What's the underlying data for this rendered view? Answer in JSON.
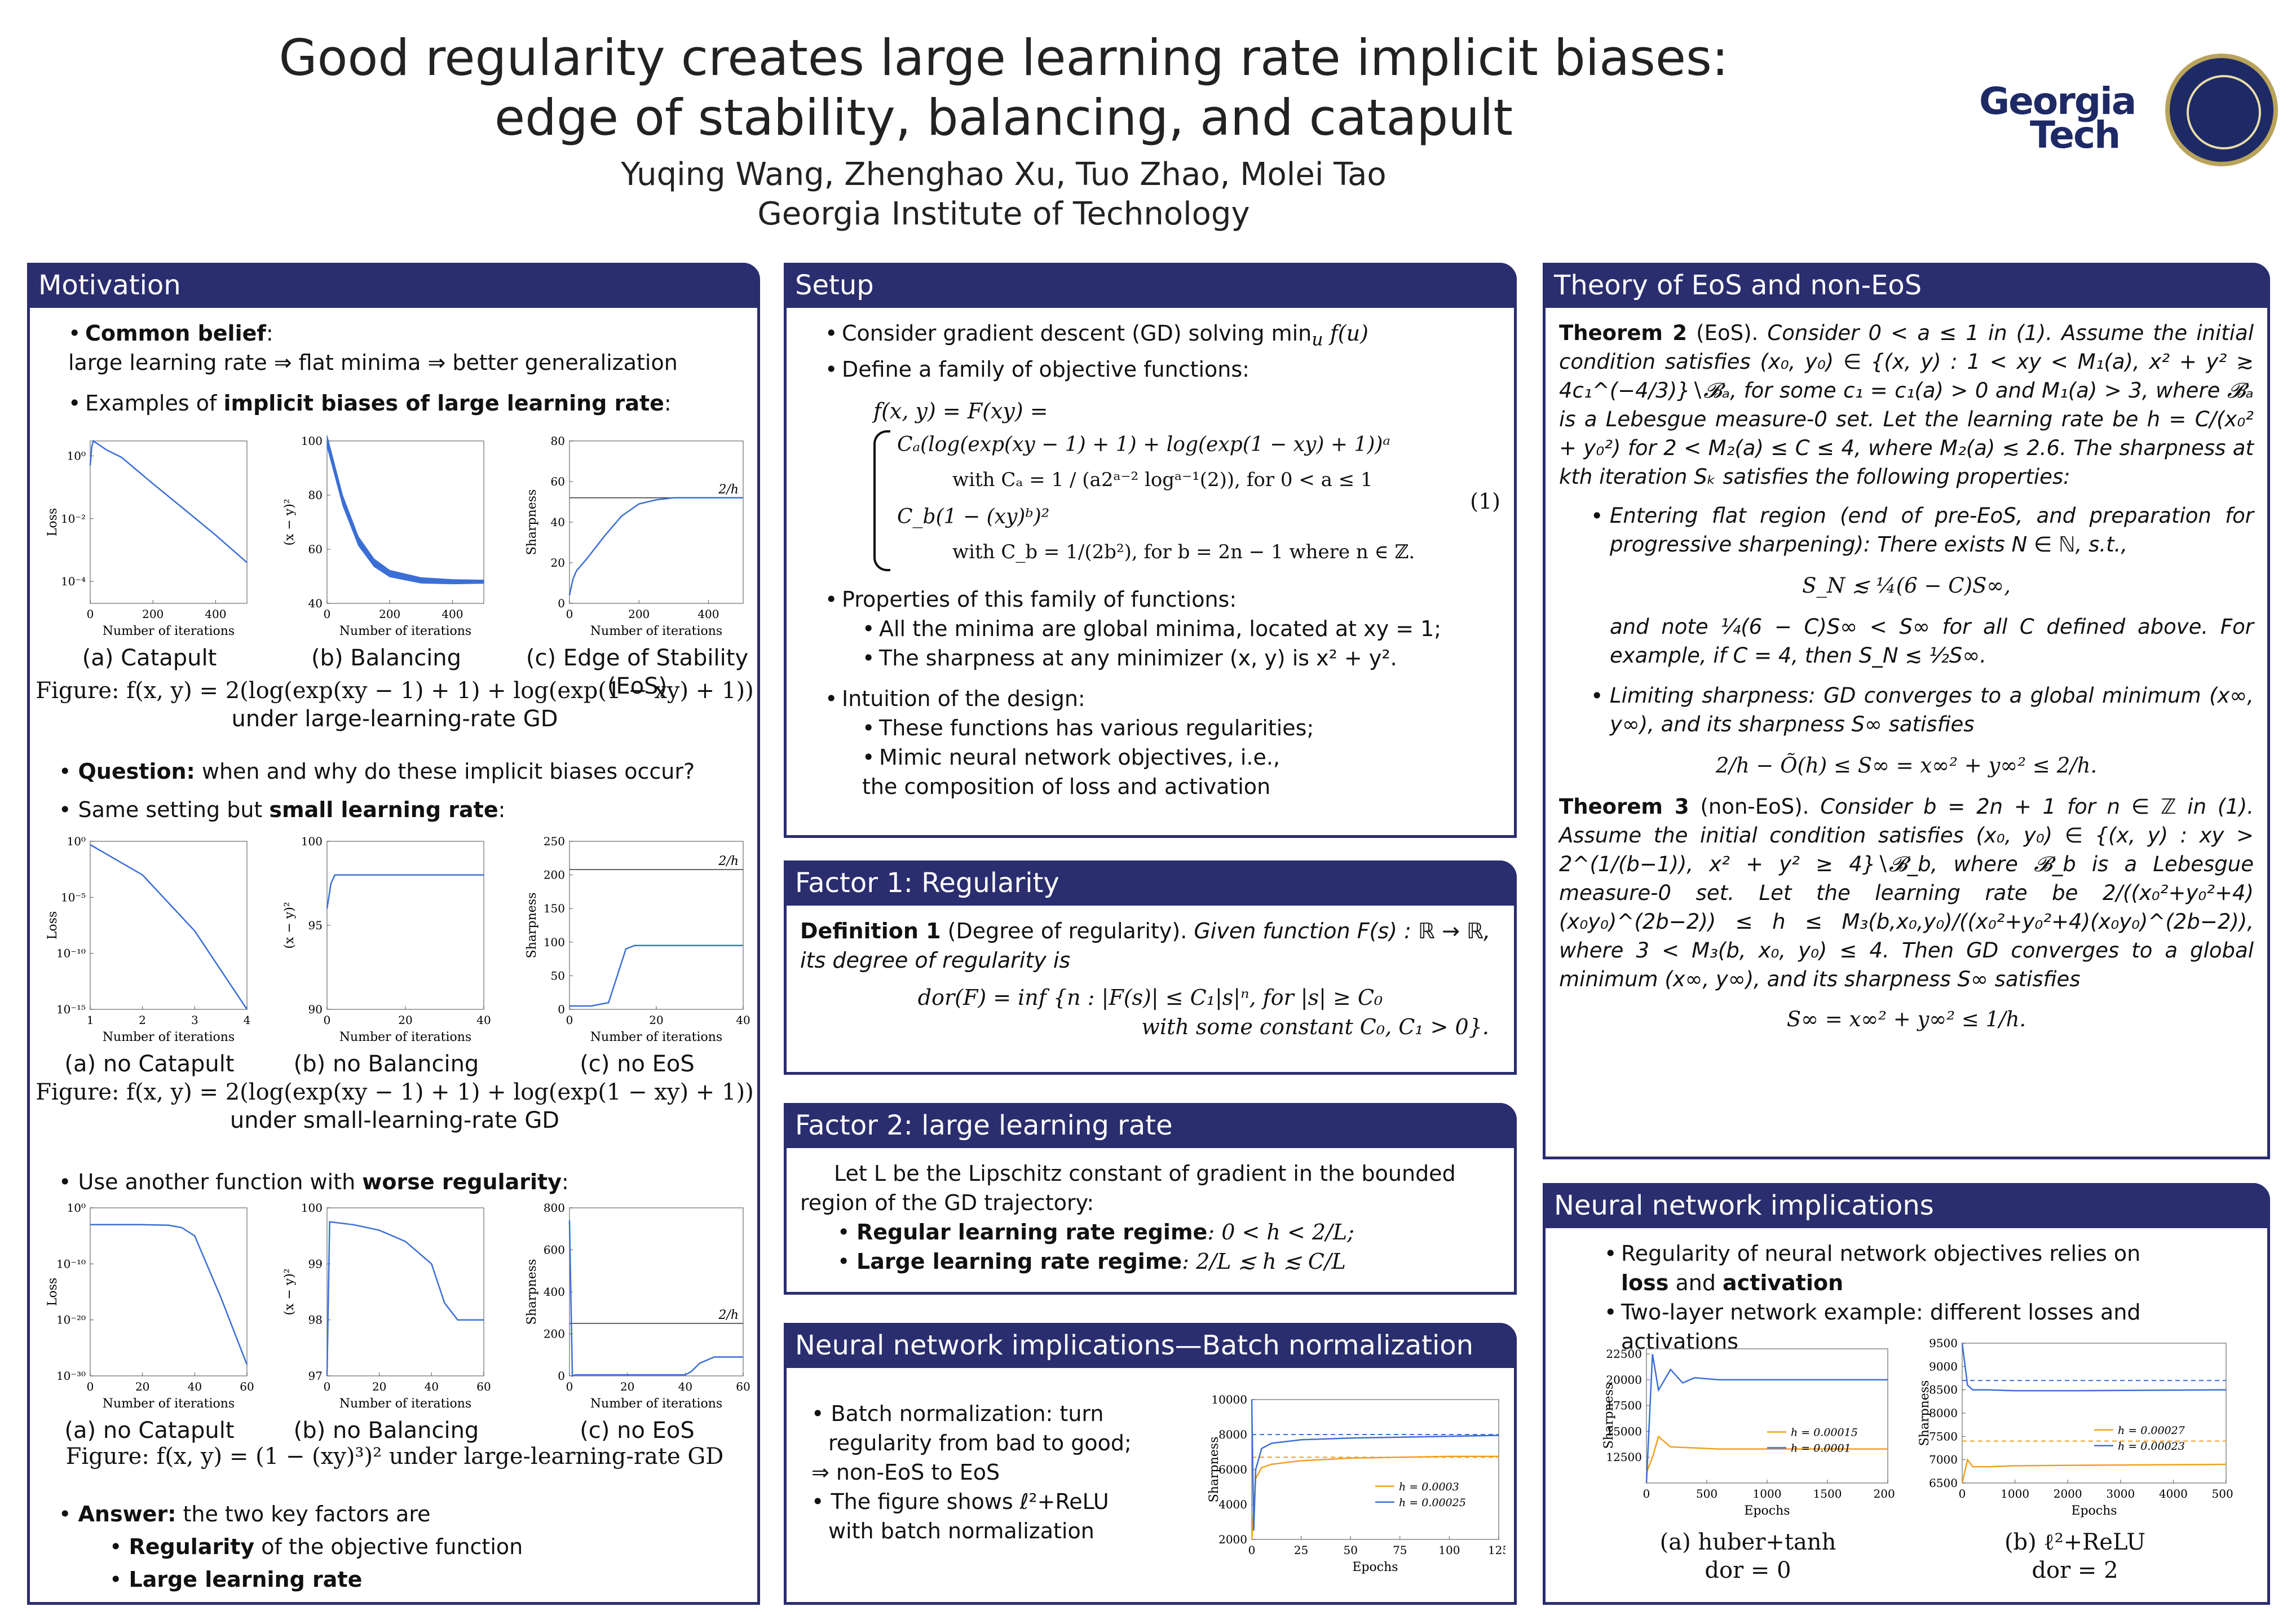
{
  "header": {
    "title_line1": "Good regularity creates large learning rate implicit biases:",
    "title_line2": "edge of stability, balancing, and catapult",
    "authors": "Yuqing Wang, Zhenghao Xu, Tuo Zhao, Molei Tao",
    "affiliation": "Georgia Institute of Technology",
    "logo_word1": "Georgia",
    "logo_word2": "Tech"
  },
  "colors": {
    "accent": "#2a2d6e",
    "series_blue": "#3b6fd6",
    "series_orange": "#f0a020",
    "series_band": "#3b6fd6"
  },
  "motivation": {
    "title": "Motivation",
    "b1_head": "Common belief",
    "b1_colon": ":",
    "b1_text": "large learning rate ⇒ flat minima ⇒ better generalization",
    "b2_pre": "Examples of ",
    "b2_bold": "implicit biases of large learning rate",
    "b2_post": ":",
    "fig1_caption": "Figure:  f(x, y) = 2(log(exp(xy − 1) + 1) + log(exp(1 − xy) + 1))",
    "fig1_caption2": "under large-learning-rate GD",
    "q_head": "Question:",
    "q_text": " when and why do these implicit biases occur?",
    "small_pre": "Same setting but ",
    "small_bold": "small learning rate",
    "small_post": ":",
    "fig2_caption": "Figure:  f(x, y) = 2(log(exp(xy − 1) + 1) + log(exp(1 − xy) + 1))",
    "fig2_caption2": "under small-learning-rate GD",
    "worse_pre": "Use another function with ",
    "worse_bold": "worse regularity",
    "worse_post": ":",
    "fig3_caption": "Figure:  f(x, y) = (1 − (xy)³)² under large-learning-rate GD",
    "ans_head": "Answer:",
    "ans_text": " the two key factors are",
    "ans1_bold": "Regularity",
    "ans1_text": " of the objective function",
    "ans2_bold": "Large learning rate"
  },
  "setup": {
    "title": "Setup",
    "b1": "Consider gradient descent (GD) solving min",
    "b1_sub": "u",
    "b1_end": " f(u)",
    "b2": "Define a family of objective functions:",
    "eq_line1": "f(x, y) = F(xy) =",
    "eq_ca": "Cₐ(log(exp(xy − 1) + 1) + log(exp(1 − xy) + 1))ᵃ",
    "eq_ca_with": "with Cₐ = 1 / (a2ᵃ⁻² logᵃ⁻¹(2)),  for 0 < a ≤ 1",
    "eq_cb": "C_b(1 − (xy)ᵇ)²",
    "eq_cb_with": "with C_b = 1/(2b²),  for b = 2n − 1 where n ∈ ℤ.",
    "eq_num": "(1)",
    "props": "Properties of this family of functions:",
    "prop1": "All the minima are global minima, located at xy = 1;",
    "prop2": "The sharpness at any minimizer (x, y) is x² + y².",
    "intuition": "Intuition of the design:",
    "int1": "These functions has various regularities;",
    "int2": "Mimic neural network objectives, i.e.,",
    "int3": "the composition of loss and activation"
  },
  "factor1": {
    "title": "Factor 1:  Regularity",
    "def_head": "Definition 1",
    "def_paren": " (Degree of regularity).",
    "def_text": " Given function F(s) : ℝ → ℝ, its degree of regularity is",
    "eq1": "dor(F) = inf {n : |F(s)| ≤ C₁|s|ⁿ,  for |s| ≥ C₀",
    "eq2": "with some constant C₀, C₁ > 0}."
  },
  "factor2": {
    "title": "Factor 2:  large learning rate",
    "intro": "Let L be the Lipschitz constant of gradient in the bounded region of the GD trajectory:",
    "b1_bold": "Regular learning rate regime",
    "b1_text": ":  0 < h < 2/L;",
    "b2_bold": "Large learning rate regime",
    "b2_text": ":  2/L ≲ h ≲ C/L"
  },
  "bn": {
    "title": "Neural network implications—Batch normalization",
    "b1": "Batch normalization: turn regularity from bad to good;",
    "b1b": "⇒ non-EoS to EoS",
    "b2": "The figure shows ℓ²+ReLU with batch normalization"
  },
  "theory": {
    "title": "Theory of EoS and non-EoS",
    "t2_head": "Theorem 2",
    "t2_paren": " (EoS).",
    "t2_text": " Consider 0 < a ≤ 1 in (1).  Assume the initial condition satisfies (x₀, y₀) ∈ {(x, y) : 1 < xy < M₁(a), x² + y² ≳ 4c₁^(−4/3)}∖𝓑ₐ, for some c₁ = c₁(a) > 0 and M₁(a) > 3, where 𝓑ₐ is a Lebesgue measure-0 set.  Let the learning rate be h = C/(x₀² + y₀²) for 2 < M₂(a) ≤ C ≤ 4,  where M₂(a) ≲ 2.6. The sharpness at kth iteration Sₖ satisfies the following properties:",
    "t2_b1": "Entering flat region (end of pre-EoS, and preparation for progressive sharpening): There exists N ∈ ℕ, s.t.,",
    "t2_eq1": "S_N ≲ ¼(6 − C)S∞,",
    "t2_b1b": "and note ¼(6 − C)S∞ < S∞ for all C defined above.  For example, if C = 4, then S_N ≲ ½S∞.",
    "t2_b2": "Limiting sharpness:  GD converges to a global minimum (x∞, y∞), and its sharpness S∞ satisfies",
    "t2_eq2": "2/h − Õ(h) ≤ S∞ = x∞² + y∞² ≤ 2/h.",
    "t3_head": "Theorem 3",
    "t3_paren": " (non-EoS).",
    "t3_text": " Consider b = 2n + 1 for n ∈ ℤ in (1).  Assume the initial condition satisfies (x₀, y₀) ∈ {(x, y) : xy > 2^(1/(b−1)), x² + y² ≥ 4}∖𝓑_b, where 𝓑_b is a Lebesgue measure-0 set.  Let the learning rate be 2/((x₀²+y₀²+4)(x₀y₀)^(2b−2)) ≤ h ≤ M₃(b,x₀,y₀)/((x₀²+y₀²+4)(x₀y₀)^(2b−2)), where 3 < M₃(b, x₀, y₀) ≤ 4.   Then GD converges to a global minimum (x∞, y∞), and its sharpness S∞ satisfies",
    "t3_eq": "S∞ = x∞² + y∞² ≤ 1/h."
  },
  "nn": {
    "title": "Neural network implications",
    "b1": "Regularity of neural network objectives relies on",
    "b1_bold1": "loss",
    "b1_and": " and ",
    "b1_bold2": "activation",
    "b2": "Two-layer network example:  different losses and activations",
    "cap_a": "(a) huber+tanh",
    "cap_a2": "dor = 0",
    "cap_b": "(b) ℓ²+ReLU",
    "cap_b2": "dor = 2"
  },
  "chart_data": [
    {
      "id": "c1",
      "type": "line",
      "xlabel": "Number of iterations",
      "ylabel": "Loss",
      "yscale": "log",
      "xlim": [
        0,
        500
      ],
      "ylim": [
        2e-05,
        3
      ],
      "xticks": [
        0,
        200,
        400
      ],
      "yticks": [
        "10⁰",
        "10⁻²",
        "10⁻⁴"
      ],
      "caption": "(a) Catapult",
      "series": [
        {
          "name": "",
          "x": [
            0,
            5,
            10,
            50,
            100,
            200,
            300,
            400,
            500
          ],
          "y": [
            0.5,
            2,
            3,
            1.6,
            0.9,
            0.13,
            0.02,
            0.003,
            0.0004
          ]
        }
      ]
    },
    {
      "id": "c2",
      "type": "area",
      "xlabel": "Number of iterations",
      "ylabel": "(x − y)²",
      "xlim": [
        0,
        500
      ],
      "ylim": [
        40,
        100
      ],
      "xticks": [
        0,
        200,
        400
      ],
      "yticks": [
        40,
        60,
        80,
        100
      ],
      "caption": "(b) Balancing",
      "series": [
        {
          "name": "",
          "x": [
            0,
            50,
            100,
            150,
            200,
            300,
            400,
            500
          ],
          "y": [
            100,
            78,
            63,
            55,
            51,
            48.5,
            48,
            48
          ]
        }
      ]
    },
    {
      "id": "c3",
      "type": "line",
      "xlabel": "Number of iterations",
      "ylabel": "Sharpness",
      "xlim": [
        0,
        500
      ],
      "ylim": [
        0,
        80
      ],
      "xticks": [
        0,
        200,
        400
      ],
      "yticks": [
        0,
        20,
        40,
        60,
        80
      ],
      "hline": {
        "y": 52,
        "label": "2/h"
      },
      "caption": "(c) Edge of Stability (EoS)",
      "series": [
        {
          "name": "",
          "x": [
            0,
            10,
            20,
            50,
            100,
            150,
            200,
            250,
            300,
            400,
            500
          ],
          "y": [
            4,
            12,
            16,
            22,
            33,
            43,
            49,
            51,
            52,
            52,
            52
          ]
        }
      ]
    },
    {
      "id": "c4",
      "type": "line",
      "xlabel": "Number of iterations",
      "ylabel": "Loss",
      "yscale": "log",
      "xlim": [
        1,
        4
      ],
      "ylim": [
        1e-15,
        1
      ],
      "xticks": [
        1,
        2,
        3,
        4
      ],
      "yticks": [
        "10⁰",
        "10⁻⁵",
        "10⁻¹⁰",
        "10⁻¹⁵"
      ],
      "caption": "(a) no Catapult",
      "series": [
        {
          "name": "",
          "x": [
            1,
            2,
            3,
            4
          ],
          "y": [
            0.5,
            0.001,
            1e-08,
            1e-15
          ]
        }
      ]
    },
    {
      "id": "c5",
      "type": "line",
      "xlabel": "Number of iterations",
      "ylabel": "(x − y)²",
      "xlim": [
        0,
        40
      ],
      "ylim": [
        90,
        100
      ],
      "xticks": [
        0,
        20,
        40
      ],
      "yticks": [
        90,
        95,
        100
      ],
      "caption": "(b) no Balancing",
      "series": [
        {
          "name": "",
          "x": [
            0,
            1,
            2,
            4,
            40
          ],
          "y": [
            96,
            97.5,
            98,
            98,
            98
          ]
        }
      ]
    },
    {
      "id": "c6",
      "type": "line",
      "xlabel": "Number of iterations",
      "ylabel": "Sharpness",
      "xlim": [
        0,
        40
      ],
      "ylim": [
        0,
        250
      ],
      "xticks": [
        0,
        20,
        40
      ],
      "yticks": [
        0,
        50,
        100,
        150,
        200,
        250
      ],
      "hline": {
        "y": 208,
        "label": "2/h"
      },
      "caption": "(c) no EoS",
      "series": [
        {
          "name": "",
          "x": [
            0,
            5,
            9,
            11,
            13,
            15,
            40
          ],
          "y": [
            5,
            5,
            10,
            50,
            90,
            95,
            95
          ]
        }
      ]
    },
    {
      "id": "c7",
      "type": "line",
      "xlabel": "Number of iterations",
      "ylabel": "Loss",
      "yscale": "log",
      "xlim": [
        0,
        60
      ],
      "ylim": [
        1e-30,
        1
      ],
      "xticks": [
        0,
        20,
        40,
        60
      ],
      "yticks": [
        "10⁰",
        "10⁻¹⁰",
        "10⁻²⁰",
        "10⁻³⁰"
      ],
      "caption": "(a) no Catapult",
      "series": [
        {
          "name": "",
          "x": [
            0,
            20,
            30,
            35,
            40,
            50,
            60
          ],
          "y": [
            0.001,
            0.001,
            0.0008,
            0.0003,
            1e-05,
            1e-16,
            1e-28
          ]
        }
      ]
    },
    {
      "id": "c8",
      "type": "line",
      "xlabel": "Number of iterations",
      "ylabel": "(x − y)²",
      "xlim": [
        0,
        60
      ],
      "ylim": [
        97,
        100
      ],
      "xticks": [
        0,
        20,
        40,
        60
      ],
      "yticks": [
        97,
        98,
        99,
        100
      ],
      "caption": "(b) no Balancing",
      "series": [
        {
          "name": "",
          "x": [
            0,
            1,
            10,
            20,
            30,
            40,
            45,
            50,
            60
          ],
          "y": [
            97,
            99.75,
            99.7,
            99.6,
            99.4,
            99,
            98.3,
            98,
            98
          ]
        }
      ]
    },
    {
      "id": "c9",
      "type": "line",
      "xlabel": "Number of iterations",
      "ylabel": "Sharpness",
      "xlim": [
        0,
        60
      ],
      "ylim": [
        0,
        800
      ],
      "xticks": [
        0,
        20,
        40,
        60
      ],
      "yticks": [
        0,
        200,
        400,
        600,
        800
      ],
      "hline": {
        "y": 250,
        "label": "2/h"
      },
      "caption": "(c) no EoS",
      "series": [
        {
          "name": "",
          "x": [
            0,
            1,
            2,
            4,
            40,
            42,
            45,
            50,
            60
          ],
          "y": [
            740,
            0,
            5,
            5,
            5,
            20,
            60,
            90,
            90
          ]
        }
      ]
    },
    {
      "id": "c10",
      "type": "line",
      "xlabel": "Epochs",
      "ylabel": "Sharpness",
      "xlim": [
        0,
        125
      ],
      "ylim": [
        2000,
        10000
      ],
      "xticks": [
        0,
        25,
        50,
        75,
        100,
        125
      ],
      "yticks": [
        2000,
        4000,
        6000,
        8000,
        10000
      ],
      "hlines": [
        8000,
        6700
      ],
      "series": [
        {
          "name": "h = 0.0003",
          "color": "#f0a020",
          "x": [
            0,
            2,
            5,
            10,
            25,
            50,
            75,
            100,
            125
          ],
          "y": [
            2000,
            5500,
            6100,
            6300,
            6500,
            6650,
            6700,
            6750,
            6750
          ]
        },
        {
          "name": "h = 0.00025",
          "color": "#3b6fd6",
          "x": [
            0,
            1,
            2,
            5,
            10,
            25,
            50,
            75,
            100,
            125
          ],
          "y": [
            10000,
            2500,
            6000,
            7200,
            7500,
            7700,
            7800,
            7850,
            7900,
            7950
          ]
        }
      ]
    },
    {
      "id": "c11",
      "type": "line",
      "xlabel": "Epochs",
      "ylabel": "Sharpness",
      "xlim": [
        0,
        2000
      ],
      "ylim": [
        10000,
        23000
      ],
      "xticks": [
        0,
        500,
        1000,
        1500,
        2000
      ],
      "yticks": [
        12500,
        15000,
        17500,
        20000,
        22500
      ],
      "series": [
        {
          "name": "h = 0.00015",
          "color": "#f0a020",
          "x": [
            0,
            50,
            100,
            200,
            400,
            600,
            1000,
            2000
          ],
          "y": [
            11000,
            12500,
            14500,
            13500,
            13400,
            13300,
            13300,
            13300
          ]
        },
        {
          "name": "h = 0.0001",
          "color": "#3b6fd6",
          "x": [
            0,
            50,
            100,
            200,
            300,
            400,
            600,
            1000,
            2000
          ],
          "y": [
            10000,
            22500,
            19000,
            21000,
            19700,
            20200,
            20000,
            20000,
            20000
          ]
        }
      ]
    },
    {
      "id": "c12",
      "type": "line",
      "xlabel": "Epochs",
      "ylabel": "Sharpness",
      "xlim": [
        0,
        5000
      ],
      "ylim": [
        6500,
        9500
      ],
      "xticks": [
        0,
        1000,
        2000,
        3000,
        4000,
        5000
      ],
      "yticks": [
        6500,
        7000,
        7500,
        8000,
        8500,
        9000,
        9500
      ],
      "hlines": [
        8700,
        7400
      ],
      "series": [
        {
          "name": "h = 0.00027",
          "color": "#f0a020",
          "x": [
            0,
            100,
            200,
            500,
            1000,
            2000,
            5000
          ],
          "y": [
            6500,
            7000,
            6850,
            6850,
            6870,
            6880,
            6900
          ]
        },
        {
          "name": "h = 0.00023",
          "color": "#3b6fd6",
          "x": [
            0,
            100,
            200,
            500,
            1000,
            2000,
            5000
          ],
          "y": [
            9500,
            8600,
            8500,
            8500,
            8480,
            8480,
            8500
          ]
        }
      ]
    }
  ]
}
